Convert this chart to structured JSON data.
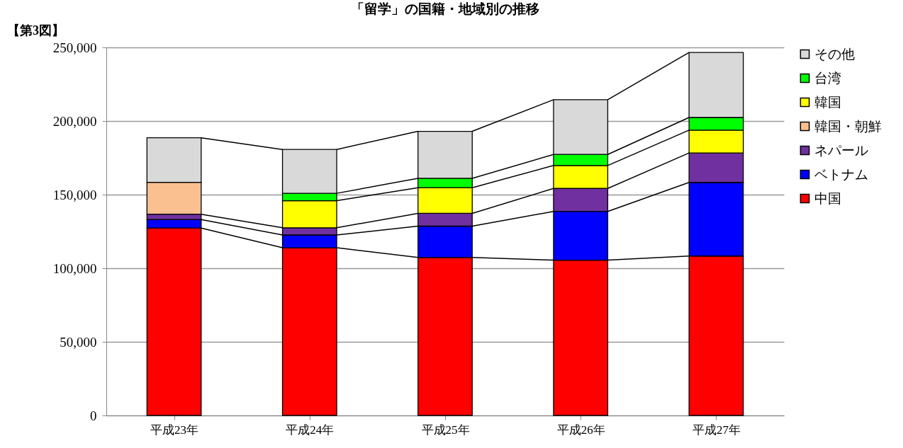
{
  "chart_data": {
    "type": "bar",
    "stacked": true,
    "title": "「留学」の国籍・地域別の推移",
    "annotations": [
      "【第3図】"
    ],
    "categories": [
      "平成23年",
      "平成24年",
      "平成25年",
      "平成26年",
      "平成27年"
    ],
    "series": [
      {
        "name": "中国",
        "color": "#ff0000",
        "values": [
          127300,
          113900,
          107300,
          105500,
          108300
        ]
      },
      {
        "name": "ベトナム",
        "color": "#0000ff",
        "values": [
          5800,
          8700,
          21300,
          33100,
          50000
        ]
      },
      {
        "name": "ネパール",
        "color": "#7030a0",
        "values": [
          3600,
          4900,
          8700,
          15600,
          20000
        ]
      },
      {
        "name": "韓国・朝鮮",
        "color": "#fac090",
        "values": [
          21700,
          null,
          null,
          null,
          null
        ]
      },
      {
        "name": "韓国",
        "color": "#ffff00",
        "values": [
          null,
          18400,
          17400,
          15600,
          15500
        ]
      },
      {
        "name": "台湾",
        "color": "#00ff00",
        "values": [
          null,
          5000,
          6400,
          7500,
          8600
        ]
      },
      {
        "name": "その他",
        "color": "#d9d9d9",
        "values": [
          30200,
          29800,
          31900,
          37200,
          44200
        ]
      }
    ],
    "ylim": [
      0,
      250000
    ],
    "yticks": [
      0,
      {
        "value": 50000,
        "label": "50,000"
      },
      {
        "value": 100000,
        "label": "100,000"
      },
      {
        "value": 150000,
        "label": "150,000"
      },
      {
        "value": 200000,
        "label": "200,000"
      },
      {
        "value": 250000,
        "label": "250,000"
      }
    ],
    "grid": "y",
    "legend": "right"
  }
}
